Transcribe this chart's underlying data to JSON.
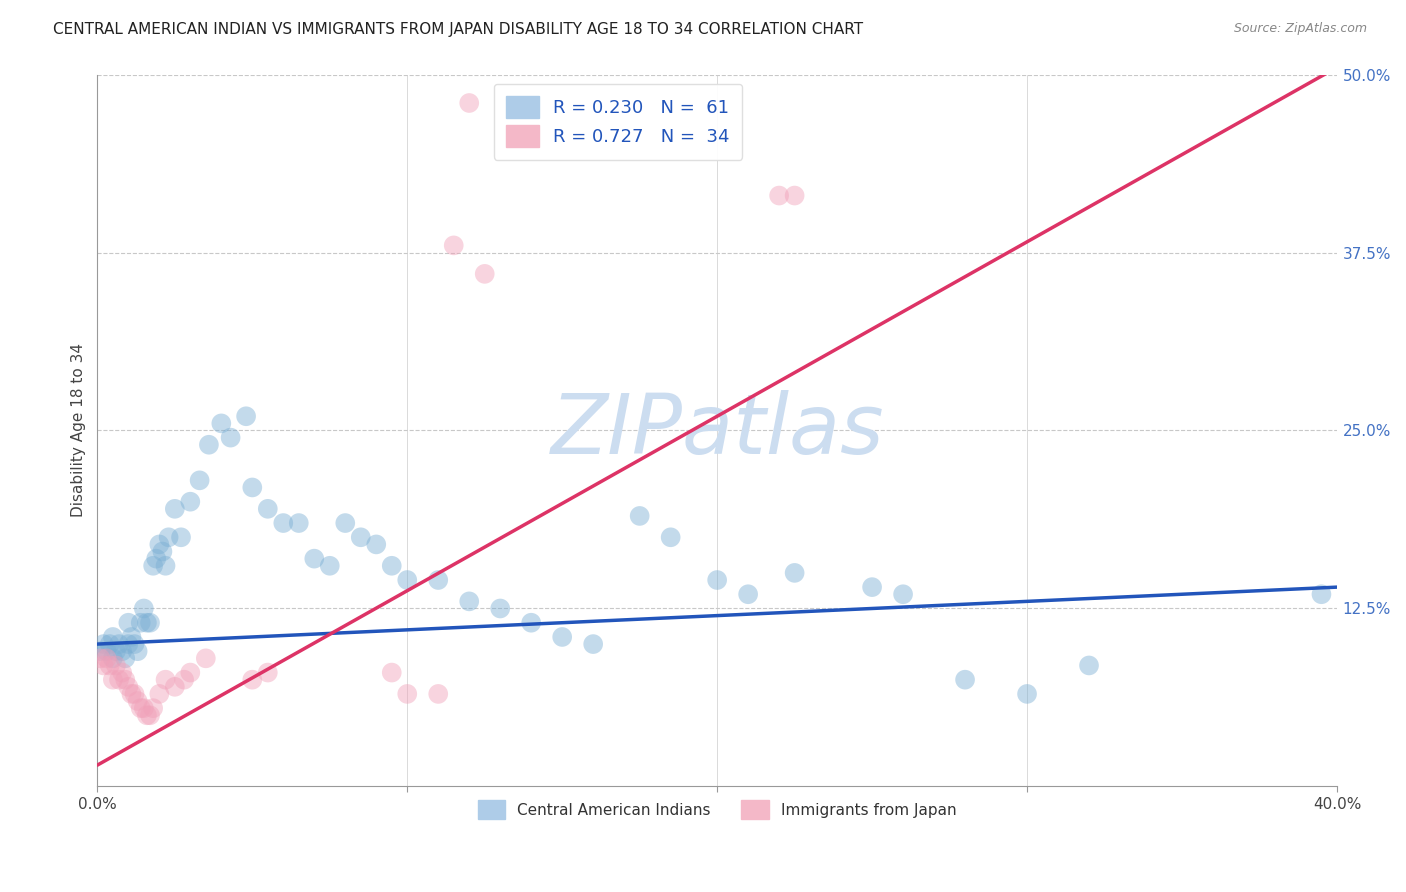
{
  "title": "CENTRAL AMERICAN INDIAN VS IMMIGRANTS FROM JAPAN DISABILITY AGE 18 TO 34 CORRELATION CHART",
  "source": "Source: ZipAtlas.com",
  "ylabel_label": "Disability Age 18 to 34",
  "watermark": "ZIPatlas",
  "blue_color": "#7bafd4",
  "pink_color": "#f0a0b8",
  "blue_line_color": "#2255bb",
  "pink_line_color": "#dd3366",
  "blue_scatter": [
    [
      0.001,
      0.095
    ],
    [
      0.002,
      0.1
    ],
    [
      0.003,
      0.095
    ],
    [
      0.004,
      0.1
    ],
    [
      0.005,
      0.09
    ],
    [
      0.005,
      0.105
    ],
    [
      0.006,
      0.095
    ],
    [
      0.007,
      0.1
    ],
    [
      0.008,
      0.095
    ],
    [
      0.009,
      0.09
    ],
    [
      0.01,
      0.1
    ],
    [
      0.01,
      0.115
    ],
    [
      0.011,
      0.105
    ],
    [
      0.012,
      0.1
    ],
    [
      0.013,
      0.095
    ],
    [
      0.014,
      0.115
    ],
    [
      0.015,
      0.125
    ],
    [
      0.016,
      0.115
    ],
    [
      0.017,
      0.115
    ],
    [
      0.018,
      0.155
    ],
    [
      0.019,
      0.16
    ],
    [
      0.02,
      0.17
    ],
    [
      0.021,
      0.165
    ],
    [
      0.022,
      0.155
    ],
    [
      0.023,
      0.175
    ],
    [
      0.025,
      0.195
    ],
    [
      0.027,
      0.175
    ],
    [
      0.03,
      0.2
    ],
    [
      0.033,
      0.215
    ],
    [
      0.036,
      0.24
    ],
    [
      0.04,
      0.255
    ],
    [
      0.043,
      0.245
    ],
    [
      0.048,
      0.26
    ],
    [
      0.05,
      0.21
    ],
    [
      0.055,
      0.195
    ],
    [
      0.06,
      0.185
    ],
    [
      0.065,
      0.185
    ],
    [
      0.07,
      0.16
    ],
    [
      0.075,
      0.155
    ],
    [
      0.08,
      0.185
    ],
    [
      0.085,
      0.175
    ],
    [
      0.09,
      0.17
    ],
    [
      0.095,
      0.155
    ],
    [
      0.1,
      0.145
    ],
    [
      0.11,
      0.145
    ],
    [
      0.12,
      0.13
    ],
    [
      0.13,
      0.125
    ],
    [
      0.14,
      0.115
    ],
    [
      0.15,
      0.105
    ],
    [
      0.16,
      0.1
    ],
    [
      0.175,
      0.19
    ],
    [
      0.185,
      0.175
    ],
    [
      0.2,
      0.145
    ],
    [
      0.21,
      0.135
    ],
    [
      0.225,
      0.15
    ],
    [
      0.25,
      0.14
    ],
    [
      0.26,
      0.135
    ],
    [
      0.28,
      0.075
    ],
    [
      0.3,
      0.065
    ],
    [
      0.32,
      0.085
    ],
    [
      0.395,
      0.135
    ]
  ],
  "pink_scatter": [
    [
      0.001,
      0.09
    ],
    [
      0.002,
      0.085
    ],
    [
      0.003,
      0.09
    ],
    [
      0.004,
      0.085
    ],
    [
      0.005,
      0.075
    ],
    [
      0.006,
      0.085
    ],
    [
      0.007,
      0.075
    ],
    [
      0.008,
      0.08
    ],
    [
      0.009,
      0.075
    ],
    [
      0.01,
      0.07
    ],
    [
      0.011,
      0.065
    ],
    [
      0.012,
      0.065
    ],
    [
      0.013,
      0.06
    ],
    [
      0.014,
      0.055
    ],
    [
      0.015,
      0.055
    ],
    [
      0.016,
      0.05
    ],
    [
      0.017,
      0.05
    ],
    [
      0.018,
      0.055
    ],
    [
      0.02,
      0.065
    ],
    [
      0.022,
      0.075
    ],
    [
      0.025,
      0.07
    ],
    [
      0.028,
      0.075
    ],
    [
      0.03,
      0.08
    ],
    [
      0.035,
      0.09
    ],
    [
      0.05,
      0.075
    ],
    [
      0.055,
      0.08
    ],
    [
      0.095,
      0.08
    ],
    [
      0.1,
      0.065
    ],
    [
      0.11,
      0.065
    ],
    [
      0.115,
      0.38
    ],
    [
      0.125,
      0.36
    ],
    [
      0.12,
      0.48
    ],
    [
      0.22,
      0.415
    ],
    [
      0.225,
      0.415
    ]
  ],
  "xlim": [
    0.0,
    0.4
  ],
  "ylim": [
    0.0,
    0.5
  ],
  "xticks": [
    0.0,
    0.1,
    0.2,
    0.3,
    0.4
  ],
  "xtick_labels": [
    "0.0%",
    "",
    "",
    "",
    "40.0%"
  ],
  "yticks_right": [
    0.0,
    0.125,
    0.25,
    0.375,
    0.5
  ],
  "ytick_labels_right": [
    "",
    "12.5%",
    "25.0%",
    "37.5%",
    "50.0%"
  ],
  "blue_line_x": [
    0.0,
    0.4
  ],
  "blue_line_y": [
    0.1,
    0.14
  ],
  "pink_line_x": [
    0.0,
    0.4
  ],
  "pink_line_y": [
    0.015,
    0.505
  ],
  "grid_color": "#c8c8c8",
  "background_color": "#ffffff",
  "title_fontsize": 11,
  "watermark_color": "#ccddf0",
  "watermark_fontsize": 60
}
